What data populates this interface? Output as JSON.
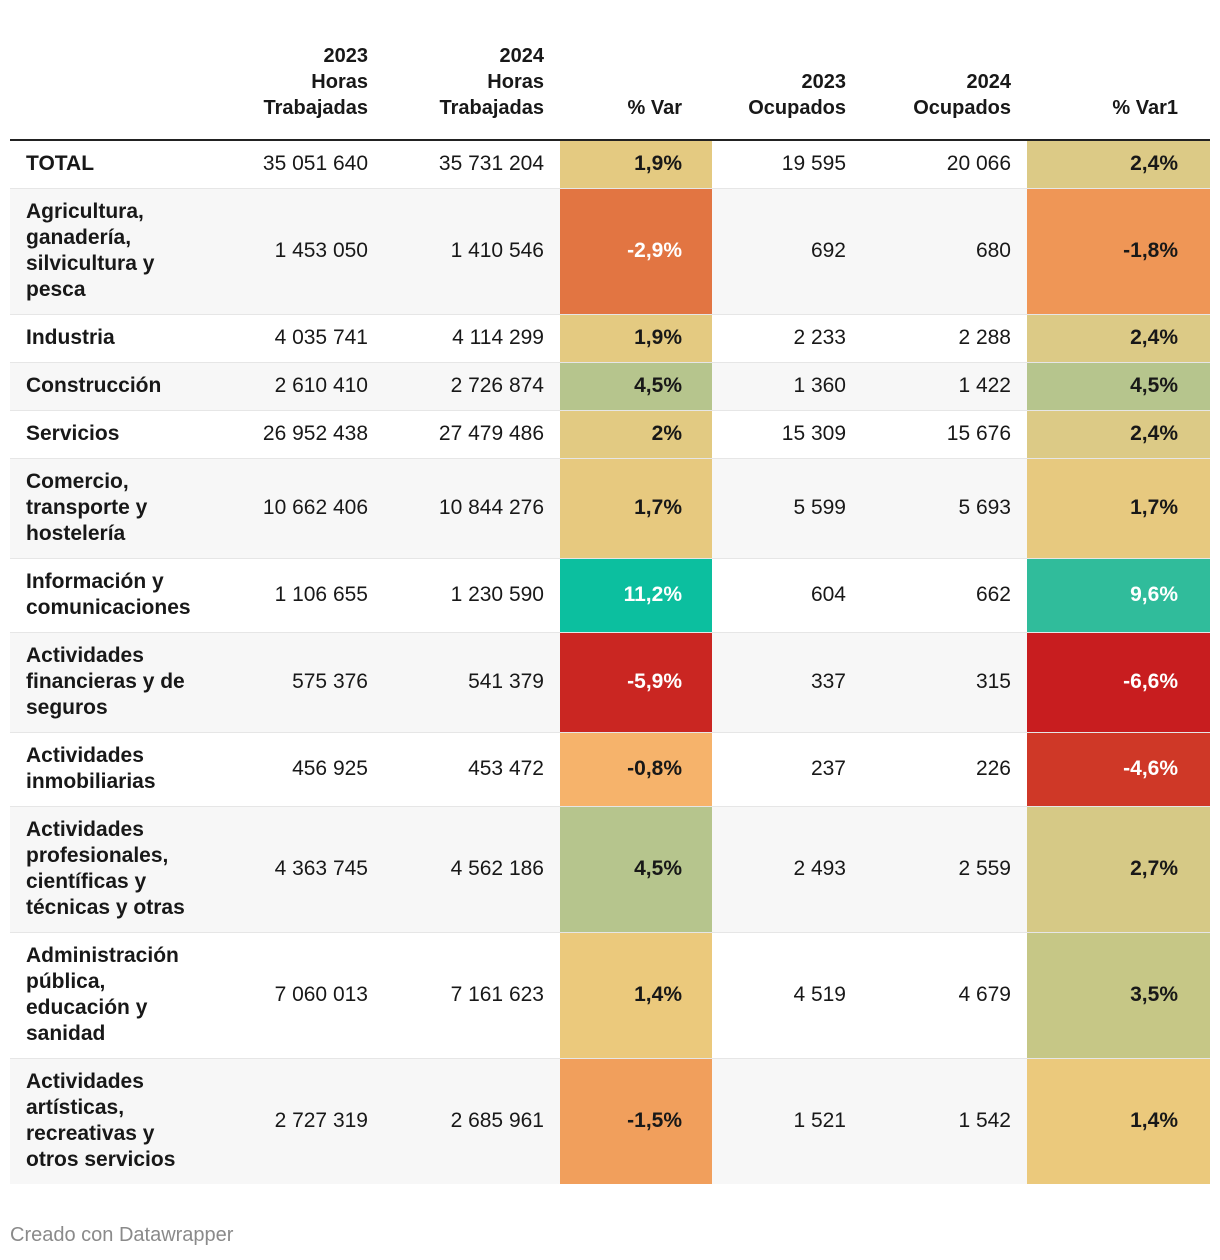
{
  "chart_data": {
    "type": "table",
    "columns": [
      {
        "key": "label",
        "lines": [
          "",
          "",
          ""
        ]
      },
      {
        "key": "h2023",
        "lines": [
          "2023",
          "Horas",
          "Trabajadas"
        ]
      },
      {
        "key": "h2024",
        "lines": [
          "2024",
          "Horas",
          "Trabajadas"
        ]
      },
      {
        "key": "var",
        "lines": [
          "",
          "",
          "% Var"
        ]
      },
      {
        "key": "o2023",
        "lines": [
          "",
          "2023",
          "Ocupados"
        ]
      },
      {
        "key": "o2024",
        "lines": [
          "",
          "2024",
          "Ocupados"
        ]
      },
      {
        "key": "var1",
        "lines": [
          "",
          "",
          "% Var1"
        ]
      }
    ],
    "rows": [
      {
        "label": "TOTAL",
        "h2023": "35 051 640",
        "h2024": "35 731 204",
        "var": "1,9%",
        "var_value": 1.9,
        "o2023": "19 595",
        "o2024": "20 066",
        "var1": "2,4%",
        "var1_value": 2.4
      },
      {
        "label": "Agricultura, ganadería, silvicultura y pesca",
        "h2023": "1 453 050",
        "h2024": "1 410 546",
        "var": "-2,9%",
        "var_value": -2.9,
        "o2023": "692",
        "o2024": "680",
        "var1": "-1,8%",
        "var1_value": -1.8
      },
      {
        "label": "Industria",
        "h2023": "4 035 741",
        "h2024": "4 114 299",
        "var": "1,9%",
        "var_value": 1.9,
        "o2023": "2 233",
        "o2024": "2 288",
        "var1": "2,4%",
        "var1_value": 2.4
      },
      {
        "label": "Construcción",
        "h2023": "2 610 410",
        "h2024": "2 726 874",
        "var": "4,5%",
        "var_value": 4.5,
        "o2023": "1 360",
        "o2024": "1 422",
        "var1": "4,5%",
        "var1_value": 4.5
      },
      {
        "label": "Servicios",
        "h2023": "26 952 438",
        "h2024": "27 479 486",
        "var": "2%",
        "var_value": 2.0,
        "o2023": "15 309",
        "o2024": "15 676",
        "var1": "2,4%",
        "var1_value": 2.4
      },
      {
        "label": "Comercio, transporte y hostelería",
        "h2023": "10 662 406",
        "h2024": "10 844 276",
        "var": "1,7%",
        "var_value": 1.7,
        "o2023": "5 599",
        "o2024": "5 693",
        "var1": "1,7%",
        "var1_value": 1.7
      },
      {
        "label": "Información y comunicaciones",
        "h2023": "1 106 655",
        "h2024": "1 230 590",
        "var": "11,2%",
        "var_value": 11.2,
        "o2023": "604",
        "o2024": "662",
        "var1": "9,6%",
        "var1_value": 9.6
      },
      {
        "label": "Actividades financieras y de seguros",
        "h2023": "575 376",
        "h2024": "541 379",
        "var": "-5,9%",
        "var_value": -5.9,
        "o2023": "337",
        "o2024": "315",
        "var1": "-6,6%",
        "var1_value": -6.6
      },
      {
        "label": "Actividades inmobiliarias",
        "h2023": "456 925",
        "h2024": "453 472",
        "var": "-0,8%",
        "var_value": -0.8,
        "o2023": "237",
        "o2024": "226",
        "var1": "-4,6%",
        "var1_value": -4.6
      },
      {
        "label": "Actividades profesionales, científicas y técnicas y otras",
        "h2023": "4 363 745",
        "h2024": "4 562 186",
        "var": "4,5%",
        "var_value": 4.5,
        "o2023": "2 493",
        "o2024": "2 559",
        "var1": "2,7%",
        "var1_value": 2.7
      },
      {
        "label": "Administración pública, educación y sanidad",
        "h2023": "7 060 013",
        "h2024": "7 161 623",
        "var": "1,4%",
        "var_value": 1.4,
        "o2023": "4 519",
        "o2024": "4 679",
        "var1": "3,5%",
        "var1_value": 3.5
      },
      {
        "label": "Actividades artísticas, recreativas y otros servicios",
        "h2023": "2 727 319",
        "h2024": "2 685 961",
        "var": "-1,5%",
        "var_value": -1.5,
        "o2023": "1 521",
        "o2024": "1 542",
        "var1": "1,4%",
        "var1_value": 1.4
      }
    ],
    "color_scale": {
      "stops": [
        {
          "value": -6.6,
          "color": "#c81d1f"
        },
        {
          "value": -4.6,
          "color": "#cf3827"
        },
        {
          "value": -2.9,
          "color": "#e27542"
        },
        {
          "value": -1.8,
          "color": "#ef9656"
        },
        {
          "value": -0.8,
          "color": "#f6b36b"
        },
        {
          "value": 1.4,
          "color": "#ebc97c"
        },
        {
          "value": 2.4,
          "color": "#dcca86"
        },
        {
          "value": 3.5,
          "color": "#c6c786"
        },
        {
          "value": 4.5,
          "color": "#b6c58d"
        },
        {
          "value": 9.6,
          "color": "#30bc9b"
        },
        {
          "value": 11.2,
          "color": "#0cbf9f"
        }
      ],
      "light_text_color": "#ffffff",
      "dark_text_color": "#181818"
    }
  },
  "footer": "Creado con Datawrapper"
}
